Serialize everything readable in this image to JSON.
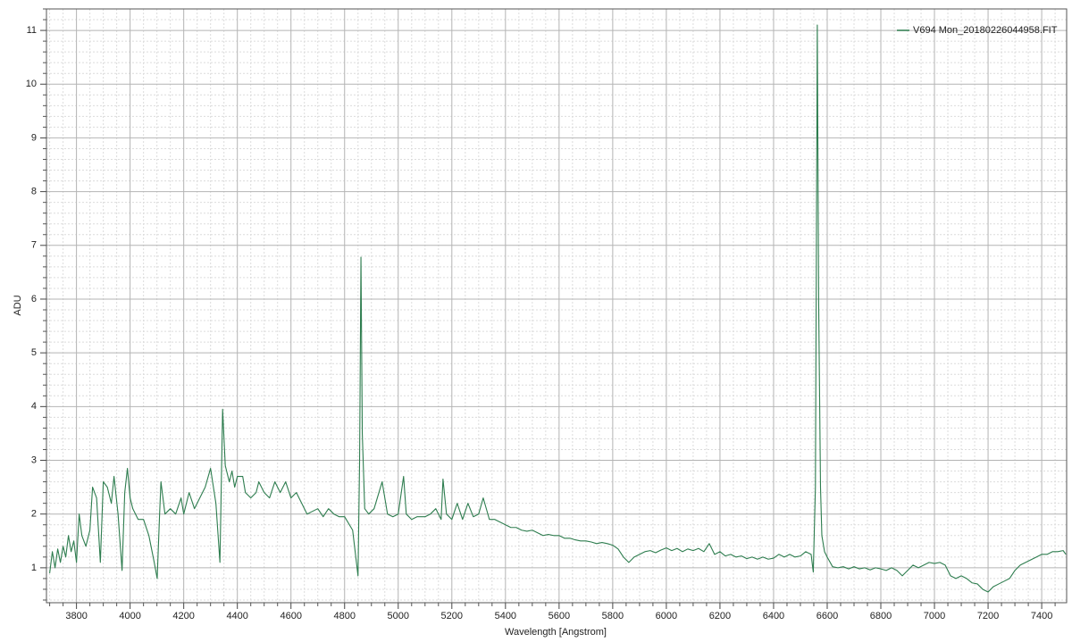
{
  "chart_data": {
    "type": "line",
    "x_label": "Wavelength [Angstrom]",
    "y_label": "ADU",
    "xlim": [
      3688,
      7493
    ],
    "ylim": [
      0.35,
      11.4
    ],
    "xticks": [
      3800,
      4000,
      4200,
      4400,
      4600,
      4800,
      5000,
      5200,
      5400,
      5600,
      5800,
      6000,
      6200,
      6400,
      6600,
      6800,
      7000,
      7200,
      7400
    ],
    "yticks": [
      1,
      2,
      3,
      4,
      5,
      6,
      7,
      8,
      9,
      10,
      11
    ],
    "grid": true,
    "minor_grid": true,
    "legend": "upper right",
    "x": [
      3700,
      3710,
      3720,
      3730,
      3740,
      3750,
      3760,
      3770,
      3780,
      3790,
      3800,
      3810,
      3820,
      3835,
      3850,
      3860,
      3875,
      3889,
      3900,
      3915,
      3930,
      3940,
      3955,
      3970,
      3980,
      3990,
      4000,
      4010,
      4030,
      4050,
      4070,
      4090,
      4101,
      4110,
      4115,
      4130,
      4150,
      4170,
      4190,
      4200,
      4220,
      4240,
      4260,
      4280,
      4300,
      4320,
      4335,
      4345,
      4355,
      4370,
      4380,
      4390,
      4400,
      4420,
      4430,
      4450,
      4470,
      4480,
      4500,
      4520,
      4540,
      4560,
      4580,
      4600,
      4620,
      4640,
      4660,
      4680,
      4700,
      4720,
      4740,
      4760,
      4780,
      4800,
      4830,
      4850,
      4856,
      4861,
      4866,
      4875,
      4890,
      4910,
      4940,
      4960,
      4980,
      5000,
      5020,
      5030,
      5050,
      5070,
      5100,
      5120,
      5140,
      5160,
      5167,
      5180,
      5200,
      5220,
      5240,
      5260,
      5280,
      5300,
      5317,
      5340,
      5360,
      5380,
      5400,
      5420,
      5440,
      5460,
      5480,
      5500,
      5520,
      5540,
      5560,
      5580,
      5600,
      5620,
      5640,
      5660,
      5680,
      5700,
      5720,
      5740,
      5760,
      5780,
      5800,
      5820,
      5840,
      5860,
      5880,
      5900,
      5920,
      5940,
      5960,
      5980,
      6000,
      6020,
      6040,
      6060,
      6080,
      6100,
      6120,
      6140,
      6160,
      6180,
      6200,
      6220,
      6240,
      6260,
      6280,
      6300,
      6320,
      6340,
      6360,
      6380,
      6400,
      6420,
      6440,
      6460,
      6480,
      6500,
      6520,
      6540,
      6548,
      6556,
      6563,
      6568,
      6575,
      6580,
      6590,
      6600,
      6620,
      6640,
      6660,
      6680,
      6700,
      6720,
      6740,
      6760,
      6780,
      6800,
      6820,
      6840,
      6860,
      6880,
      6900,
      6920,
      6940,
      6960,
      6980,
      7000,
      7020,
      7040,
      7060,
      7080,
      7100,
      7120,
      7140,
      7160,
      7180,
      7200,
      7220,
      7240,
      7260,
      7280,
      7300,
      7320,
      7340,
      7360,
      7380,
      7400,
      7420,
      7440,
      7460,
      7480,
      7490
    ],
    "series": [
      {
        "name": "V694 Mon_20180226044958.FIT",
        "color": "#2e7d4f",
        "values": [
          0.9,
          1.3,
          1.0,
          1.35,
          1.1,
          1.4,
          1.2,
          1.6,
          1.3,
          1.5,
          1.1,
          2.0,
          1.6,
          1.4,
          1.7,
          2.5,
          2.3,
          1.1,
          2.6,
          2.5,
          2.2,
          2.7,
          2.0,
          0.95,
          2.4,
          2.85,
          2.3,
          2.1,
          1.9,
          1.9,
          1.6,
          1.1,
          0.8,
          2.0,
          2.6,
          2.0,
          2.1,
          2.0,
          2.3,
          2.0,
          2.4,
          2.1,
          2.3,
          2.5,
          2.85,
          2.2,
          1.1,
          3.95,
          2.9,
          2.6,
          2.8,
          2.5,
          2.7,
          2.7,
          2.4,
          2.3,
          2.4,
          2.6,
          2.4,
          2.3,
          2.6,
          2.4,
          2.6,
          2.3,
          2.4,
          2.2,
          2.0,
          2.05,
          2.1,
          1.95,
          2.1,
          2.0,
          1.95,
          1.95,
          1.7,
          0.85,
          3.0,
          6.78,
          3.5,
          2.1,
          2.0,
          2.1,
          2.6,
          2.0,
          1.95,
          2.0,
          2.7,
          2.0,
          1.9,
          1.95,
          1.95,
          2.0,
          2.1,
          1.9,
          2.65,
          2.0,
          1.9,
          2.2,
          1.9,
          2.2,
          1.95,
          2.0,
          2.3,
          1.9,
          1.9,
          1.85,
          1.8,
          1.75,
          1.75,
          1.7,
          1.68,
          1.7,
          1.65,
          1.6,
          1.62,
          1.6,
          1.6,
          1.55,
          1.55,
          1.52,
          1.5,
          1.5,
          1.48,
          1.45,
          1.47,
          1.45,
          1.42,
          1.35,
          1.2,
          1.1,
          1.2,
          1.25,
          1.3,
          1.32,
          1.28,
          1.33,
          1.37,
          1.32,
          1.36,
          1.3,
          1.35,
          1.32,
          1.36,
          1.3,
          1.45,
          1.25,
          1.3,
          1.22,
          1.25,
          1.2,
          1.22,
          1.17,
          1.2,
          1.16,
          1.2,
          1.16,
          1.18,
          1.25,
          1.2,
          1.25,
          1.2,
          1.22,
          1.3,
          1.25,
          0.92,
          2.5,
          11.1,
          6.0,
          2.5,
          1.6,
          1.3,
          1.2,
          1.02,
          1.0,
          1.02,
          0.98,
          1.02,
          0.98,
          1.0,
          0.96,
          1.0,
          0.98,
          0.95,
          1.0,
          0.95,
          0.85,
          0.95,
          1.05,
          1.0,
          1.05,
          1.1,
          1.08,
          1.1,
          1.05,
          0.85,
          0.8,
          0.85,
          0.8,
          0.72,
          0.7,
          0.6,
          0.55,
          0.65,
          0.7,
          0.75,
          0.8,
          0.95,
          1.05,
          1.1,
          1.15,
          1.2,
          1.25,
          1.25,
          1.3,
          1.3,
          1.32,
          1.25
        ]
      }
    ]
  }
}
